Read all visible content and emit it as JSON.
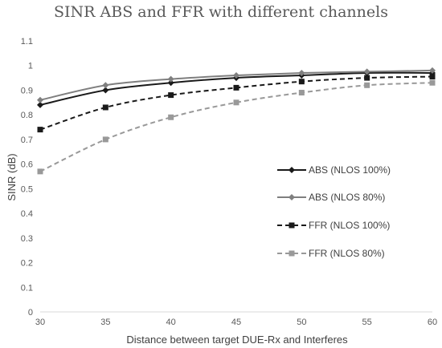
{
  "chart_data": {
    "type": "line",
    "title": "SINR ABS and FFR with different channels",
    "xlabel": "Distance between target DUE-Rx and Interferes",
    "ylabel": "SINR (dB)",
    "x": [
      30,
      35,
      40,
      45,
      50,
      55,
      60
    ],
    "xlim": [
      30,
      60
    ],
    "ylim": [
      0,
      1.1
    ],
    "x_ticks": [
      "30",
      "35",
      "40",
      "45",
      "50",
      "55",
      "60"
    ],
    "y_ticks": [
      "0",
      "0.1",
      "0.2",
      "0.3",
      "0.4",
      "0.5",
      "0.6",
      "0.7",
      "0.8",
      "0.9",
      "1",
      "1.1"
    ],
    "grid": false,
    "legend_position": "right",
    "series": [
      {
        "name": "ABS (NLOS 100%)",
        "values": [
          0.84,
          0.9,
          0.93,
          0.95,
          0.96,
          0.97,
          0.97
        ],
        "color": "#1a1a1a",
        "dash": "solid",
        "marker": "diamond"
      },
      {
        "name": "ABS (NLOS 80%)",
        "values": [
          0.86,
          0.92,
          0.945,
          0.96,
          0.97,
          0.975,
          0.98
        ],
        "color": "#7f7f7f",
        "dash": "solid",
        "marker": "diamond"
      },
      {
        "name": "FFR (NLOS 100%)",
        "values": [
          0.74,
          0.83,
          0.88,
          0.91,
          0.935,
          0.95,
          0.955
        ],
        "color": "#1a1a1a",
        "dash": "dashed",
        "marker": "square"
      },
      {
        "name": "FFR (NLOS 80%)",
        "values": [
          0.57,
          0.7,
          0.79,
          0.85,
          0.89,
          0.92,
          0.93
        ],
        "color": "#999999",
        "dash": "dashed",
        "marker": "square"
      }
    ]
  }
}
